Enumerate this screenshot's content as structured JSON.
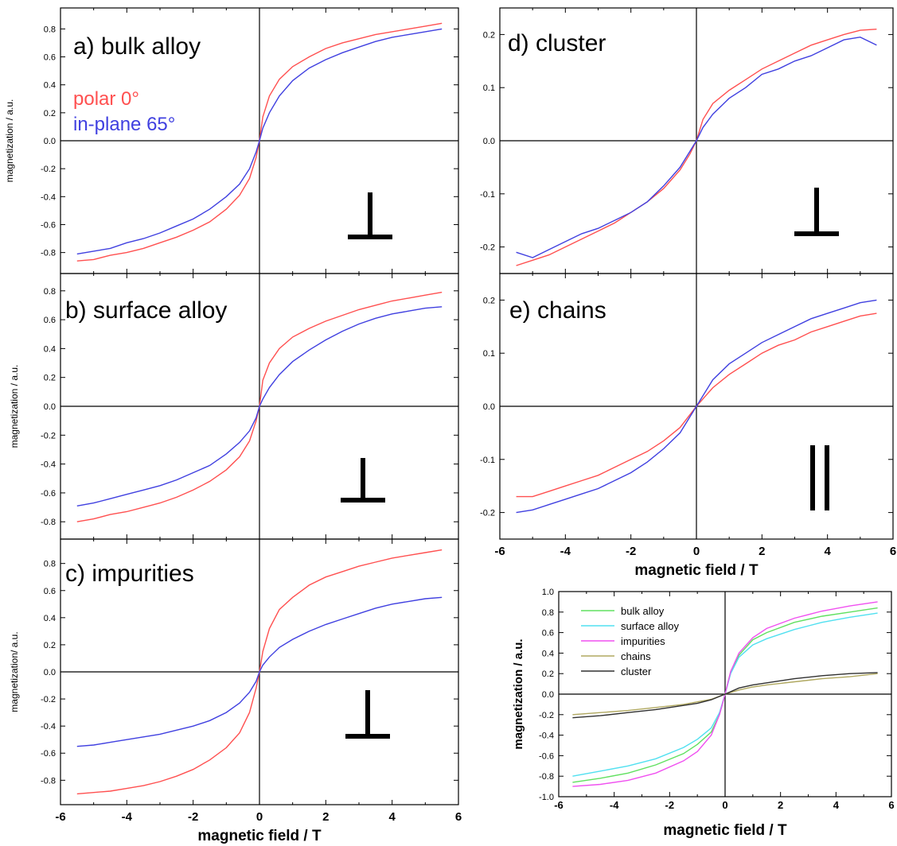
{
  "chart_data": [
    {
      "id": "a",
      "type": "line",
      "title": "a) bulk alloy",
      "xlabel": "",
      "ylabel": "magnetization / a.u.",
      "xlim": [
        -6,
        6
      ],
      "ylim": [
        -0.95,
        0.95
      ],
      "yticks": [
        -0.8,
        -0.6,
        -0.4,
        -0.2,
        0.0,
        0.2,
        0.4,
        0.6,
        0.8
      ],
      "ytick_labels": [
        "-0.8",
        "-0.6",
        "-0.4",
        "-0.2",
        "0.0",
        "0.2",
        "0.4",
        "0.6",
        "0.8"
      ],
      "xtick_labels": [],
      "symbol": "perpendicular",
      "legend": [
        {
          "label": "polar 0°",
          "color": "#ff5050"
        },
        {
          "label": "in-plane 65°",
          "color": "#4040e0"
        }
      ],
      "series": [
        {
          "name": "polar 0°",
          "color": "#ff5050",
          "x": [
            -5.5,
            -5.0,
            -4.5,
            -4.0,
            -3.5,
            -3.0,
            -2.5,
            -2.0,
            -1.5,
            -1.0,
            -0.6,
            -0.3,
            -0.1,
            0.0,
            0.1,
            0.3,
            0.6,
            1.0,
            1.5,
            2.0,
            2.5,
            3.0,
            3.5,
            4.0,
            4.5,
            5.0,
            5.5
          ],
          "y": [
            -0.86,
            -0.85,
            -0.82,
            -0.8,
            -0.77,
            -0.73,
            -0.69,
            -0.64,
            -0.58,
            -0.49,
            -0.39,
            -0.27,
            -0.12,
            0.0,
            0.17,
            0.32,
            0.44,
            0.53,
            0.6,
            0.66,
            0.7,
            0.73,
            0.76,
            0.78,
            0.8,
            0.82,
            0.84
          ]
        },
        {
          "name": "in-plane 65°",
          "color": "#4040e0",
          "x": [
            -5.5,
            -5.0,
            -4.5,
            -4.0,
            -3.5,
            -3.0,
            -2.5,
            -2.0,
            -1.5,
            -1.0,
            -0.6,
            -0.3,
            -0.1,
            0.0,
            0.1,
            0.3,
            0.6,
            1.0,
            1.5,
            2.0,
            2.5,
            3.0,
            3.5,
            4.0,
            4.5,
            5.0,
            5.5
          ],
          "y": [
            -0.81,
            -0.79,
            -0.77,
            -0.73,
            -0.7,
            -0.66,
            -0.61,
            -0.56,
            -0.49,
            -0.4,
            -0.31,
            -0.2,
            -0.08,
            0.0,
            0.09,
            0.2,
            0.32,
            0.43,
            0.52,
            0.58,
            0.63,
            0.67,
            0.71,
            0.74,
            0.76,
            0.78,
            0.8
          ]
        }
      ]
    },
    {
      "id": "b",
      "type": "line",
      "title": "b) surface alloy",
      "xlabel": "",
      "ylabel": "magnetization / a.u.",
      "xlim": [
        -6,
        6
      ],
      "ylim": [
        -0.92,
        0.92
      ],
      "yticks": [
        -0.8,
        -0.6,
        -0.4,
        -0.2,
        0.0,
        0.2,
        0.4,
        0.6,
        0.8
      ],
      "ytick_labels": [
        "-0.8",
        "-0.6",
        "-0.4",
        "-0.2",
        "0.0",
        "0.2",
        "0.4",
        "0.6",
        "0.8"
      ],
      "xtick_labels": [],
      "symbol": "perpendicular",
      "series": [
        {
          "name": "",
          "color": "#ff5050",
          "x": [
            -5.5,
            -5.0,
            -4.5,
            -4.0,
            -3.5,
            -3.0,
            -2.5,
            -2.0,
            -1.5,
            -1.0,
            -0.6,
            -0.3,
            -0.1,
            0.0,
            0.1,
            0.3,
            0.6,
            1.0,
            1.5,
            2.0,
            2.5,
            3.0,
            3.5,
            4.0,
            4.5,
            5.0,
            5.5
          ],
          "y": [
            -0.8,
            -0.78,
            -0.75,
            -0.73,
            -0.7,
            -0.67,
            -0.63,
            -0.58,
            -0.52,
            -0.44,
            -0.35,
            -0.24,
            -0.1,
            0.0,
            0.18,
            0.3,
            0.4,
            0.48,
            0.54,
            0.59,
            0.63,
            0.67,
            0.7,
            0.73,
            0.75,
            0.77,
            0.79
          ]
        },
        {
          "name": "",
          "color": "#4040e0",
          "x": [
            -5.5,
            -5.0,
            -4.5,
            -4.0,
            -3.5,
            -3.0,
            -2.5,
            -2.0,
            -1.5,
            -1.0,
            -0.6,
            -0.3,
            -0.1,
            0.0,
            0.1,
            0.3,
            0.6,
            1.0,
            1.5,
            2.0,
            2.5,
            3.0,
            3.5,
            4.0,
            4.5,
            5.0,
            5.5
          ],
          "y": [
            -0.69,
            -0.67,
            -0.64,
            -0.61,
            -0.58,
            -0.55,
            -0.51,
            -0.46,
            -0.41,
            -0.33,
            -0.25,
            -0.17,
            -0.08,
            0.0,
            0.05,
            0.13,
            0.22,
            0.31,
            0.39,
            0.46,
            0.52,
            0.57,
            0.61,
            0.64,
            0.66,
            0.68,
            0.69
          ]
        }
      ]
    },
    {
      "id": "c",
      "type": "line",
      "title": "c) impurities",
      "xlabel": "magnetic field / T",
      "ylabel": "magnetization/ a.u.",
      "xlim": [
        -6,
        6
      ],
      "ylim": [
        -0.98,
        0.98
      ],
      "yticks": [
        -0.8,
        -0.6,
        -0.4,
        -0.2,
        0.0,
        0.2,
        0.4,
        0.6,
        0.8
      ],
      "ytick_labels": [
        "-0.8",
        "-0.6",
        "-0.4",
        "-0.2",
        "0.0",
        "0.2",
        "0.4",
        "0.6",
        "0.8"
      ],
      "xticks": [
        -6,
        -4,
        -2,
        0,
        2,
        4,
        6
      ],
      "xtick_labels": [
        "-6",
        "-4",
        "-2",
        "0",
        "2",
        "4",
        "6"
      ],
      "symbol": "perpendicular",
      "series": [
        {
          "name": "",
          "color": "#ff5050",
          "x": [
            -5.5,
            -5.0,
            -4.5,
            -4.0,
            -3.5,
            -3.0,
            -2.5,
            -2.0,
            -1.5,
            -1.0,
            -0.6,
            -0.3,
            -0.1,
            0.0,
            0.1,
            0.3,
            0.6,
            1.0,
            1.5,
            2.0,
            2.5,
            3.0,
            3.5,
            4.0,
            4.5,
            5.0,
            5.5
          ],
          "y": [
            -0.9,
            -0.89,
            -0.88,
            -0.86,
            -0.84,
            -0.81,
            -0.77,
            -0.72,
            -0.65,
            -0.56,
            -0.45,
            -0.3,
            -0.12,
            0.0,
            0.15,
            0.32,
            0.46,
            0.55,
            0.64,
            0.7,
            0.74,
            0.78,
            0.81,
            0.84,
            0.86,
            0.88,
            0.9
          ]
        },
        {
          "name": "",
          "color": "#4040e0",
          "x": [
            -5.5,
            -5.0,
            -4.5,
            -4.0,
            -3.5,
            -3.0,
            -2.5,
            -2.0,
            -1.5,
            -1.0,
            -0.6,
            -0.3,
            -0.1,
            0.0,
            0.1,
            0.3,
            0.6,
            1.0,
            1.5,
            2.0,
            2.5,
            3.0,
            3.5,
            4.0,
            4.5,
            5.0,
            5.5
          ],
          "y": [
            -0.55,
            -0.54,
            -0.52,
            -0.5,
            -0.48,
            -0.46,
            -0.43,
            -0.4,
            -0.36,
            -0.3,
            -0.23,
            -0.15,
            -0.07,
            0.0,
            0.05,
            0.11,
            0.18,
            0.24,
            0.3,
            0.35,
            0.39,
            0.43,
            0.47,
            0.5,
            0.52,
            0.54,
            0.55
          ]
        }
      ]
    },
    {
      "id": "d",
      "type": "line",
      "title": "d) cluster",
      "xlabel": "",
      "ylabel": "",
      "xlim": [
        -6,
        6
      ],
      "ylim": [
        -0.25,
        0.25
      ],
      "yticks": [
        -0.2,
        -0.1,
        0.0,
        0.1,
        0.2
      ],
      "ytick_labels": [
        "-0.2",
        "-0.1",
        "0.0",
        "0.1",
        "0.2"
      ],
      "xtick_labels": [],
      "symbol": "perpendicular",
      "series": [
        {
          "name": "",
          "color": "#ff5050",
          "x": [
            -5.5,
            -5.0,
            -4.5,
            -4.0,
            -3.5,
            -3.0,
            -2.5,
            -2.0,
            -1.5,
            -1.0,
            -0.5,
            -0.2,
            0.0,
            0.2,
            0.5,
            1.0,
            1.5,
            2.0,
            2.5,
            3.0,
            3.5,
            4.0,
            4.5,
            5.0,
            5.5
          ],
          "y": [
            -0.235,
            -0.225,
            -0.215,
            -0.2,
            -0.185,
            -0.17,
            -0.155,
            -0.135,
            -0.115,
            -0.09,
            -0.055,
            -0.025,
            0.0,
            0.04,
            0.07,
            0.095,
            0.115,
            0.135,
            0.15,
            0.165,
            0.18,
            0.19,
            0.2,
            0.208,
            0.21
          ]
        },
        {
          "name": "",
          "color": "#4040e0",
          "x": [
            -5.5,
            -5.0,
            -4.5,
            -4.0,
            -3.5,
            -3.0,
            -2.5,
            -2.0,
            -1.5,
            -1.0,
            -0.5,
            -0.2,
            0.0,
            0.2,
            0.5,
            1.0,
            1.5,
            2.0,
            2.5,
            3.0,
            3.5,
            4.0,
            4.5,
            5.0,
            5.5
          ],
          "y": [
            -0.21,
            -0.22,
            -0.205,
            -0.19,
            -0.175,
            -0.165,
            -0.15,
            -0.135,
            -0.115,
            -0.085,
            -0.05,
            -0.02,
            0.0,
            0.025,
            0.05,
            0.08,
            0.1,
            0.125,
            0.135,
            0.15,
            0.16,
            0.175,
            0.19,
            0.195,
            0.18
          ]
        }
      ]
    },
    {
      "id": "e",
      "type": "line",
      "title": "e) chains",
      "xlabel": "magnetic field / T",
      "ylabel": "",
      "xlim": [
        -6,
        6
      ],
      "ylim": [
        -0.25,
        0.25
      ],
      "yticks": [
        -0.2,
        -0.1,
        0.0,
        0.1,
        0.2
      ],
      "ytick_labels": [
        "-0.2",
        "-0.1",
        "0.0",
        "0.1",
        "0.2"
      ],
      "xticks": [
        -6,
        -4,
        -2,
        0,
        2,
        4,
        6
      ],
      "xtick_labels": [
        "-6",
        "-4",
        "-2",
        "0",
        "2",
        "4",
        "6"
      ],
      "symbol": "parallel",
      "series": [
        {
          "name": "",
          "color": "#ff5050",
          "x": [
            -5.5,
            -5.0,
            -4.5,
            -4.0,
            -3.5,
            -3.0,
            -2.5,
            -2.0,
            -1.5,
            -1.0,
            -0.5,
            0.0,
            0.5,
            1.0,
            1.5,
            2.0,
            2.5,
            3.0,
            3.5,
            4.0,
            4.5,
            5.0,
            5.5
          ],
          "y": [
            -0.17,
            -0.17,
            -0.16,
            -0.15,
            -0.14,
            -0.13,
            -0.115,
            -0.1,
            -0.085,
            -0.065,
            -0.04,
            0.0,
            0.035,
            0.06,
            0.08,
            0.1,
            0.115,
            0.125,
            0.14,
            0.15,
            0.16,
            0.17,
            0.175
          ]
        },
        {
          "name": "",
          "color": "#4040e0",
          "x": [
            -5.5,
            -5.0,
            -4.5,
            -4.0,
            -3.5,
            -3.0,
            -2.5,
            -2.0,
            -1.5,
            -1.0,
            -0.5,
            0.0,
            0.5,
            1.0,
            1.5,
            2.0,
            2.5,
            3.0,
            3.5,
            4.0,
            4.5,
            5.0,
            5.5
          ],
          "y": [
            -0.2,
            -0.195,
            -0.185,
            -0.175,
            -0.165,
            -0.155,
            -0.14,
            -0.125,
            -0.105,
            -0.08,
            -0.05,
            0.0,
            0.05,
            0.08,
            0.1,
            0.12,
            0.135,
            0.15,
            0.165,
            0.175,
            0.185,
            0.195,
            0.2
          ]
        }
      ]
    },
    {
      "id": "f",
      "type": "line",
      "title": "",
      "xlabel": "magnetic field / T",
      "ylabel": "magnetization / a.u.",
      "xlim": [
        -6,
        6
      ],
      "ylim": [
        -1.0,
        1.0
      ],
      "yticks": [
        -1.0,
        -0.8,
        -0.6,
        -0.4,
        -0.2,
        0.0,
        0.2,
        0.4,
        0.6,
        0.8,
        1.0
      ],
      "ytick_labels": [
        "-1.0",
        "-0.8",
        "-0.6",
        "-0.4",
        "-0.2",
        "0.0",
        "0.2",
        "0.4",
        "0.6",
        "0.8",
        "1.0"
      ],
      "xticks": [
        -6,
        -4,
        -2,
        0,
        2,
        4,
        6
      ],
      "xtick_labels": [
        "-6",
        "-4",
        "-2",
        "0",
        "2",
        "4",
        "6"
      ],
      "legend_placement": "top-left",
      "series": [
        {
          "name": "bulk alloy",
          "color": "#60e060",
          "x": [
            -5.5,
            -4.5,
            -3.5,
            -2.5,
            -1.5,
            -1.0,
            -0.5,
            -0.2,
            0.0,
            0.2,
            0.5,
            1.0,
            1.5,
            2.5,
            3.5,
            4.5,
            5.5
          ],
          "y": [
            -0.86,
            -0.82,
            -0.77,
            -0.69,
            -0.58,
            -0.49,
            -0.37,
            -0.2,
            0.0,
            0.22,
            0.38,
            0.53,
            0.6,
            0.7,
            0.76,
            0.8,
            0.84
          ]
        },
        {
          "name": "surface alloy",
          "color": "#50e0f0",
          "x": [
            -5.5,
            -4.5,
            -3.5,
            -2.5,
            -1.5,
            -1.0,
            -0.5,
            -0.2,
            0.0,
            0.2,
            0.5,
            1.0,
            1.5,
            2.5,
            3.5,
            4.5,
            5.5
          ],
          "y": [
            -0.8,
            -0.75,
            -0.7,
            -0.63,
            -0.52,
            -0.44,
            -0.33,
            -0.18,
            0.0,
            0.2,
            0.36,
            0.48,
            0.54,
            0.63,
            0.7,
            0.75,
            0.79
          ]
        },
        {
          "name": "impurities",
          "color": "#f050f0",
          "x": [
            -5.5,
            -4.5,
            -3.5,
            -2.5,
            -1.5,
            -1.0,
            -0.5,
            -0.2,
            0.0,
            0.2,
            0.5,
            1.0,
            1.5,
            2.5,
            3.5,
            4.5,
            5.5
          ],
          "y": [
            -0.9,
            -0.88,
            -0.84,
            -0.77,
            -0.65,
            -0.56,
            -0.4,
            -0.2,
            0.0,
            0.22,
            0.4,
            0.55,
            0.64,
            0.74,
            0.81,
            0.86,
            0.9
          ]
        },
        {
          "name": "chains",
          "color": "#b0a860",
          "x": [
            -5.5,
            -4.5,
            -3.5,
            -2.5,
            -1.5,
            -1.0,
            -0.5,
            0.0,
            0.5,
            1.0,
            1.5,
            2.5,
            3.5,
            4.5,
            5.5
          ],
          "y": [
            -0.2,
            -0.18,
            -0.16,
            -0.13,
            -0.1,
            -0.075,
            -0.05,
            0.0,
            0.04,
            0.07,
            0.09,
            0.12,
            0.15,
            0.17,
            0.2
          ]
        },
        {
          "name": "cluster",
          "color": "#303030",
          "x": [
            -5.5,
            -4.5,
            -3.5,
            -2.5,
            -1.5,
            -1.0,
            -0.5,
            0.0,
            0.5,
            1.0,
            1.5,
            2.5,
            3.5,
            4.5,
            5.5
          ],
          "y": [
            -0.23,
            -0.21,
            -0.18,
            -0.15,
            -0.11,
            -0.09,
            -0.055,
            0.0,
            0.06,
            0.09,
            0.11,
            0.15,
            0.18,
            0.2,
            0.21
          ]
        }
      ]
    }
  ]
}
